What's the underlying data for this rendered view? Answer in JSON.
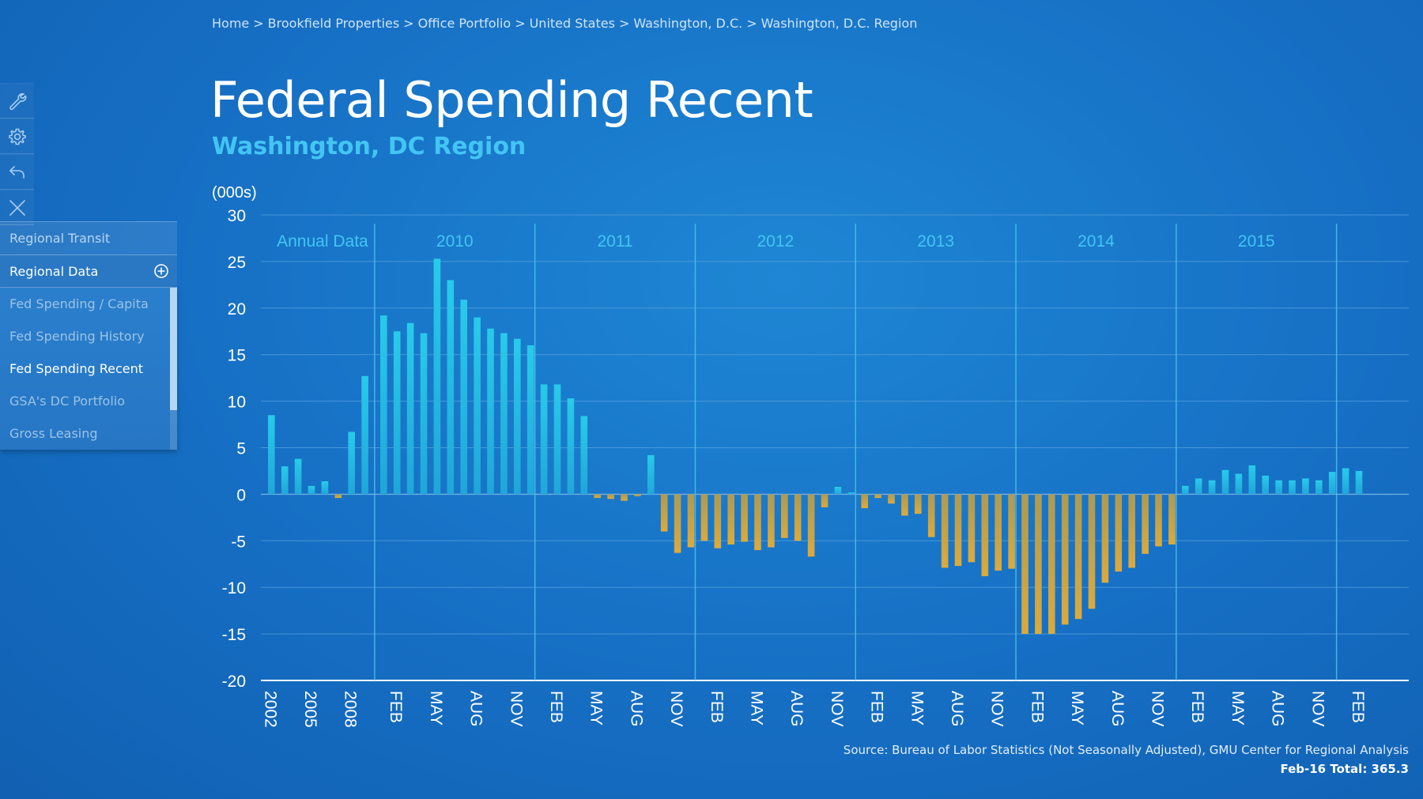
{
  "breadcrumb": [
    "Home",
    "Brookfield Properties",
    "Office Portfolio",
    "United States",
    "Washington, D.C.",
    "Washington, D.C. Region"
  ],
  "page": {
    "title": "Federal Spending Recent",
    "subtitle": "Washington, DC Region"
  },
  "toolbar": {
    "icons": [
      "wrench-icon",
      "gear-icon",
      "undo-icon",
      "close-icon"
    ]
  },
  "nav": {
    "sections": [
      "Regional Transit",
      "Regional Data"
    ],
    "items": [
      "Fed Spending / Capita",
      "Fed Spending History",
      "Fed Spending Recent",
      "GSA's DC Portfolio",
      "Gross Leasing"
    ],
    "active_item": "Fed Spending Recent"
  },
  "colors": {
    "positive_bar": "#28c4e8",
    "negative_bar": "#d6aa45",
    "accent": "#43c5f3",
    "grid": "#5aa2dd"
  },
  "chart_data": {
    "type": "bar",
    "ylabel": "(000s)",
    "ylim": [
      -20,
      30
    ],
    "yticks": [
      30,
      25,
      20,
      15,
      10,
      5,
      0,
      -5,
      -10,
      -15,
      -20
    ],
    "grid": true,
    "period_labels": [
      "Annual Data",
      "2010",
      "2011",
      "2012",
      "2013",
      "2014",
      "2015"
    ],
    "x_tick_labels": [
      "2002",
      "2005",
      "2008",
      "FEB",
      "MAY",
      "AUG",
      "NOV",
      "FEB",
      "MAY",
      "AUG",
      "NOV",
      "FEB",
      "MAY",
      "AUG",
      "NOV",
      "FEB",
      "MAY",
      "AUG",
      "NOV",
      "FEB",
      "MAY",
      "AUG",
      "NOV",
      "FEB",
      "MAY",
      "AUG",
      "NOV",
      "FEB"
    ],
    "annual": {
      "years": [
        "2002",
        "2003",
        "2004",
        "2005",
        "2006",
        "2007",
        "2008",
        "2009"
      ],
      "values": [
        8.5,
        3.0,
        3.8,
        0.9,
        1.4,
        -0.4,
        6.7,
        12.7
      ]
    },
    "monthly": {
      "start": "Jan 2010",
      "values": [
        19.2,
        17.5,
        18.4,
        17.3,
        25.3,
        23.0,
        20.9,
        19.0,
        17.8,
        17.3,
        16.7,
        16.0,
        11.8,
        11.8,
        10.3,
        8.4,
        -0.4,
        -0.5,
        -0.7,
        -0.2,
        4.2,
        -4.0,
        -6.3,
        -5.7,
        -5.0,
        -5.8,
        -5.4,
        -5.1,
        -6.0,
        -5.7,
        -4.7,
        -5.0,
        -6.7,
        -1.4,
        0.8,
        0.2,
        -1.5,
        -0.4,
        -1.0,
        -2.3,
        -2.1,
        -4.6,
        -7.9,
        -7.7,
        -7.3,
        -8.8,
        -8.2,
        -8.0,
        -15.0,
        -15.0,
        -15.0,
        -14.0,
        -13.4,
        -12.3,
        -9.5,
        -8.3,
        -7.9,
        -6.4,
        -5.6,
        -5.4,
        0.9,
        1.7,
        1.5,
        2.6,
        2.2,
        3.1,
        2.0,
        1.5,
        1.5,
        1.7,
        1.5,
        2.4,
        2.8,
        2.5
      ]
    },
    "source": "Source: Bureau of Labor Statistics (Not Seasonally Adjusted), GMU Center for Regional Analysis",
    "total": "Feb-16 Total: 365.3"
  }
}
